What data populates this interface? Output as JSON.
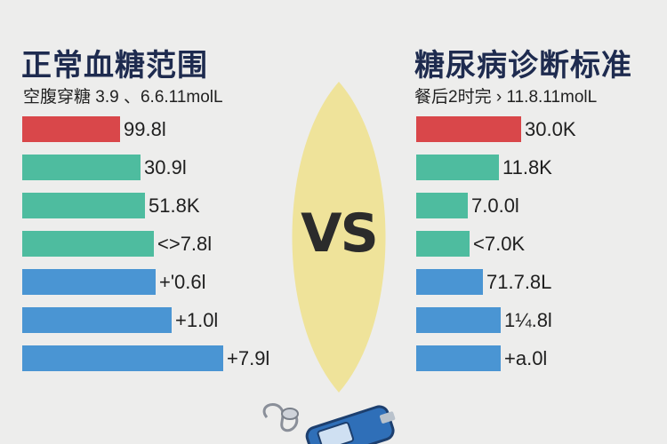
{
  "colors": {
    "red": "#d9474a",
    "teal": "#4ebc9f",
    "blue": "#4a95d3",
    "leaf": "#efe39a"
  },
  "vs_label": "VS",
  "chart_data": [
    {
      "type": "bar",
      "orientation": "horizontal",
      "title": "正常血糖范围",
      "subtitle": "空腹穿糖   3.9 、6.6.11molL",
      "labels": [
        "99.8l",
        "30.9l",
        "51.8K",
        "<>7.8l",
        "+'0.6l",
        "+1.0l",
        "+7.9l"
      ],
      "values": [
        110,
        133,
        138,
        148,
        150,
        168,
        226
      ],
      "colors": [
        "red",
        "teal",
        "teal",
        "teal",
        "blue",
        "blue",
        "blue"
      ]
    },
    {
      "type": "bar",
      "orientation": "horizontal",
      "title": "糖尿病诊断标准",
      "subtitle": "餐后2时完 ›  11.8.11molL",
      "labels": [
        "30.0K",
        "11.8K",
        "7.0.0l",
        "<7.0K",
        "71.7.8L",
        "1¼.8l",
        "+a.0l"
      ],
      "values": [
        118,
        93,
        58,
        60,
        75,
        95,
        95
      ],
      "colors": [
        "red",
        "teal",
        "teal",
        "teal",
        "blue",
        "blue",
        "blue"
      ]
    }
  ]
}
